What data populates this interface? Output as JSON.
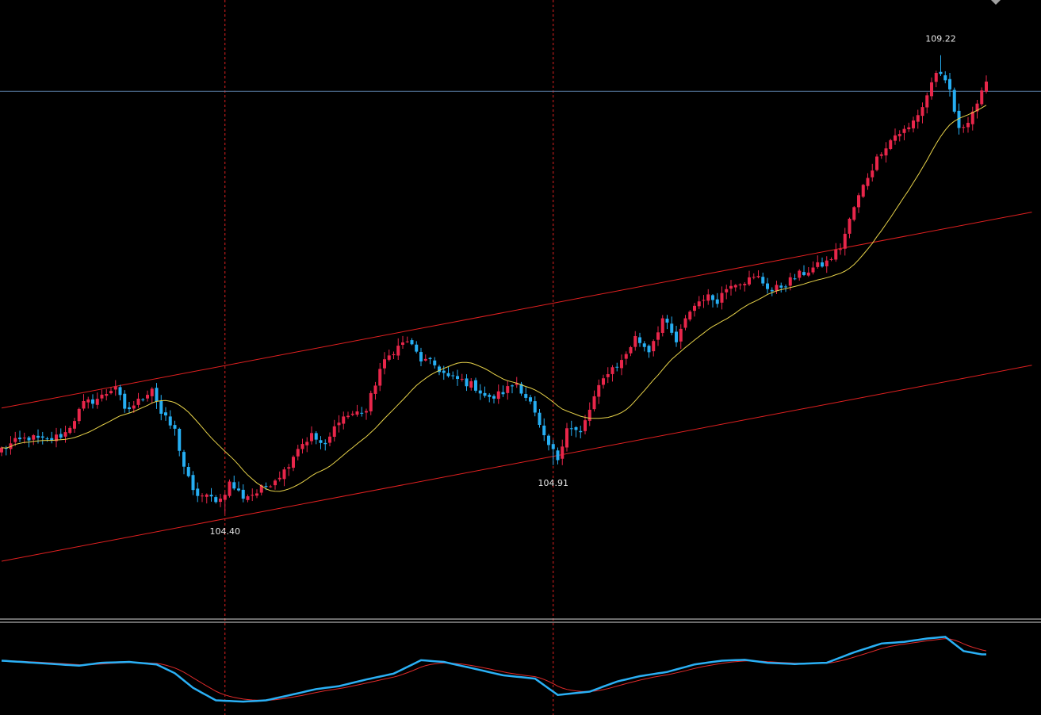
{
  "chart_data": {
    "type": "candlestick",
    "title": "",
    "grid": false,
    "price_range": [
      103.3,
      109.8
    ],
    "colors": {
      "background": "#000000",
      "bull_candle": "#e8264a",
      "bear_candle": "#26aef2",
      "moving_average": "#e8d34a",
      "channel_lines": "#e02020",
      "marker_lines": "#e02020",
      "horizontal_line": "#5a7fa8",
      "oscillator_main": "#2ab0f5",
      "oscillator_signal": "#e02a2a",
      "separator": "#d8d8d8"
    },
    "annotations": [
      {
        "label": "104.40",
        "price": 104.4,
        "bar": 49,
        "position": "below"
      },
      {
        "label": "104.91",
        "price": 104.91,
        "bar": 121,
        "position": "below"
      },
      {
        "label": "109.22",
        "price": 109.22,
        "bar": 206,
        "position": "above"
      }
    ],
    "horizontal_line_price": 108.84,
    "marker_bars": [
      49,
      121
    ],
    "channel": {
      "upper": {
        "start_bar": 0,
        "start_price": 105.51,
        "end_bar": 226,
        "end_price": 107.57
      },
      "lower": {
        "start_bar": 0,
        "start_price": 103.9,
        "end_bar": 226,
        "end_price": 105.96
      }
    },
    "close_anchors": [
      [
        0,
        105.08
      ],
      [
        3,
        105.15
      ],
      [
        6,
        105.2
      ],
      [
        10,
        105.16
      ],
      [
        14,
        105.25
      ],
      [
        18,
        105.55
      ],
      [
        22,
        105.63
      ],
      [
        25,
        105.75
      ],
      [
        27,
        105.47
      ],
      [
        30,
        105.58
      ],
      [
        33,
        105.73
      ],
      [
        35,
        105.45
      ],
      [
        38,
        105.27
      ],
      [
        40,
        104.9
      ],
      [
        42,
        104.62
      ],
      [
        45,
        104.57
      ],
      [
        48,
        104.55
      ],
      [
        50,
        104.72
      ],
      [
        53,
        104.58
      ],
      [
        56,
        104.62
      ],
      [
        59,
        104.73
      ],
      [
        62,
        104.85
      ],
      [
        65,
        105.1
      ],
      [
        68,
        105.22
      ],
      [
        71,
        105.1
      ],
      [
        74,
        105.4
      ],
      [
        77,
        105.45
      ],
      [
        80,
        105.48
      ],
      [
        83,
        105.92
      ],
      [
        86,
        106.12
      ],
      [
        89,
        106.22
      ],
      [
        92,
        106.02
      ],
      [
        95,
        105.96
      ],
      [
        98,
        105.83
      ],
      [
        101,
        105.8
      ],
      [
        104,
        105.73
      ],
      [
        107,
        105.6
      ],
      [
        110,
        105.68
      ],
      [
        113,
        105.78
      ],
      [
        116,
        105.56
      ],
      [
        119,
        105.18
      ],
      [
        122,
        104.98
      ],
      [
        124,
        105.32
      ],
      [
        127,
        105.24
      ],
      [
        130,
        105.62
      ],
      [
        133,
        105.9
      ],
      [
        136,
        106.0
      ],
      [
        139,
        106.25
      ],
      [
        142,
        106.12
      ],
      [
        145,
        106.45
      ],
      [
        148,
        106.2
      ],
      [
        151,
        106.54
      ],
      [
        154,
        106.68
      ],
      [
        157,
        106.65
      ],
      [
        160,
        106.83
      ],
      [
        163,
        106.85
      ],
      [
        166,
        106.88
      ],
      [
        169,
        106.74
      ],
      [
        172,
        106.82
      ],
      [
        175,
        106.91
      ],
      [
        178,
        106.98
      ],
      [
        181,
        107.04
      ],
      [
        184,
        107.2
      ],
      [
        187,
        107.62
      ],
      [
        190,
        107.95
      ],
      [
        193,
        108.22
      ],
      [
        196,
        108.38
      ],
      [
        199,
        108.45
      ],
      [
        202,
        108.68
      ],
      [
        205,
        109.05
      ],
      [
        208,
        108.85
      ],
      [
        210,
        108.42
      ],
      [
        212,
        108.55
      ],
      [
        214,
        108.72
      ],
      [
        216,
        108.9
      ]
    ],
    "moving_average_period": 20,
    "oscillator": {
      "range": [
        -1.15,
        1.05
      ],
      "main_anchors": [
        [
          0,
          0.15
        ],
        [
          10,
          0.08
        ],
        [
          17,
          0.03
        ],
        [
          22,
          0.1
        ],
        [
          28,
          0.12
        ],
        [
          34,
          0.06
        ],
        [
          38,
          -0.15
        ],
        [
          42,
          -0.5
        ],
        [
          47,
          -0.8
        ],
        [
          53,
          -0.83
        ],
        [
          58,
          -0.8
        ],
        [
          63,
          -0.68
        ],
        [
          69,
          -0.53
        ],
        [
          74,
          -0.46
        ],
        [
          80,
          -0.3
        ],
        [
          86,
          -0.16
        ],
        [
          92,
          0.16
        ],
        [
          97,
          0.12
        ],
        [
          104,
          -0.05
        ],
        [
          110,
          -0.2
        ],
        [
          117,
          -0.28
        ],
        [
          122,
          -0.67
        ],
        [
          129,
          -0.59
        ],
        [
          135,
          -0.35
        ],
        [
          140,
          -0.22
        ],
        [
          146,
          -0.12
        ],
        [
          152,
          0.06
        ],
        [
          158,
          0.15
        ],
        [
          163,
          0.17
        ],
        [
          168,
          0.1
        ],
        [
          174,
          0.07
        ],
        [
          181,
          0.1
        ],
        [
          187,
          0.35
        ],
        [
          193,
          0.56
        ],
        [
          198,
          0.6
        ],
        [
          203,
          0.68
        ],
        [
          207,
          0.72
        ],
        [
          211,
          0.38
        ],
        [
          215,
          0.3
        ]
      ],
      "signal_period": 8
    }
  }
}
